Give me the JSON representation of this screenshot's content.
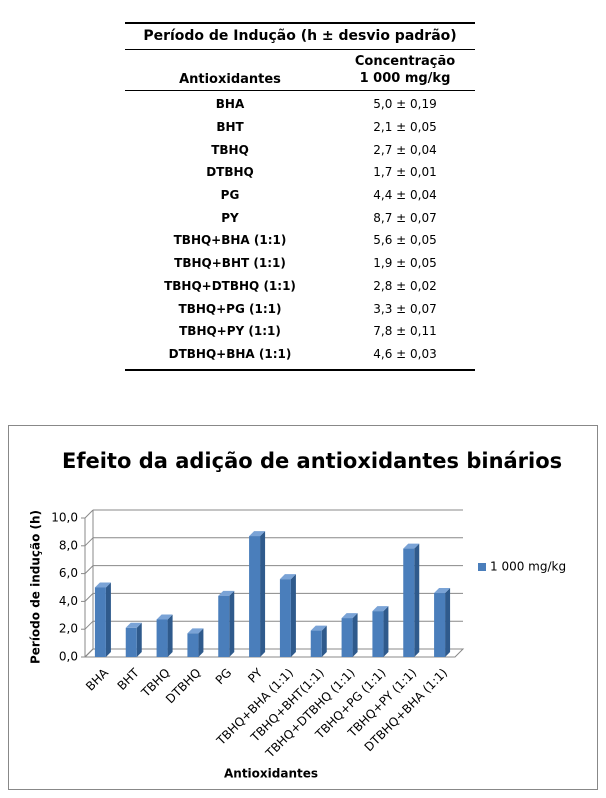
{
  "table": {
    "title": "Período de Indução (h ± desvio padrão)",
    "column_headers": {
      "name": "Antioxidantes",
      "concentration": [
        "Concentração",
        "1 000 mg/kg"
      ]
    },
    "rows": [
      [
        "BHA",
        "5,0 ± 0,19"
      ],
      [
        "BHT",
        "2,1 ± 0,05"
      ],
      [
        "TBHQ",
        "2,7 ± 0,04"
      ],
      [
        "DTBHQ",
        "1,7 ± 0,01"
      ],
      [
        "PG",
        "4,4 ± 0,04"
      ],
      [
        "PY",
        "8,7 ± 0,07"
      ],
      [
        "TBHQ+BHA (1:1)",
        "5,6 ± 0,05"
      ],
      [
        "TBHQ+BHT (1:1)",
        "1,9 ± 0,05"
      ],
      [
        "TBHQ+DTBHQ (1:1)",
        "2,8 ± 0,02"
      ],
      [
        "TBHQ+PG (1:1)",
        "3,3 ± 0,07"
      ],
      [
        "TBHQ+PY (1:1)",
        "7,8 ± 0,11"
      ],
      [
        "DTBHQ+BHA (1:1)",
        "4,6 ± 0,03"
      ]
    ]
  },
  "chart_data": {
    "type": "bar",
    "title": "Efeito da adição de antioxidantes binários",
    "y_label": "Período de indução (h)",
    "x_label": "Antioxidantes",
    "categories": [
      "BHA",
      "BHT",
      "TBHQ",
      "DTBHQ",
      "PG",
      "PY",
      "TBHQ+BHA (1:1)",
      "TBHQ+BHT(1:1)",
      "TBHQ+DTBHQ (1:1)",
      "TBHQ+PG (1:1)",
      "TBHQ+PY (1:1)",
      "DTBHQ+BHA (1:1)"
    ],
    "series": [
      {
        "name": "1 000 mg/kg",
        "color": "#4a7ebb",
        "values": [
          5.0,
          2.1,
          2.7,
          1.7,
          4.4,
          8.7,
          5.6,
          1.9,
          2.8,
          3.3,
          7.8,
          4.6
        ]
      }
    ],
    "ylim": [
      0,
      10
    ],
    "yticks": [
      {
        "value": 0,
        "label": "0,0"
      },
      {
        "value": 2,
        "label": "2,0"
      },
      {
        "value": 4,
        "label": "4,0"
      },
      {
        "value": 6,
        "label": "6,0"
      },
      {
        "value": 8,
        "label": "8,0"
      },
      {
        "value": 10,
        "label": "10,0"
      }
    ],
    "grid": true,
    "legend": "right"
  }
}
